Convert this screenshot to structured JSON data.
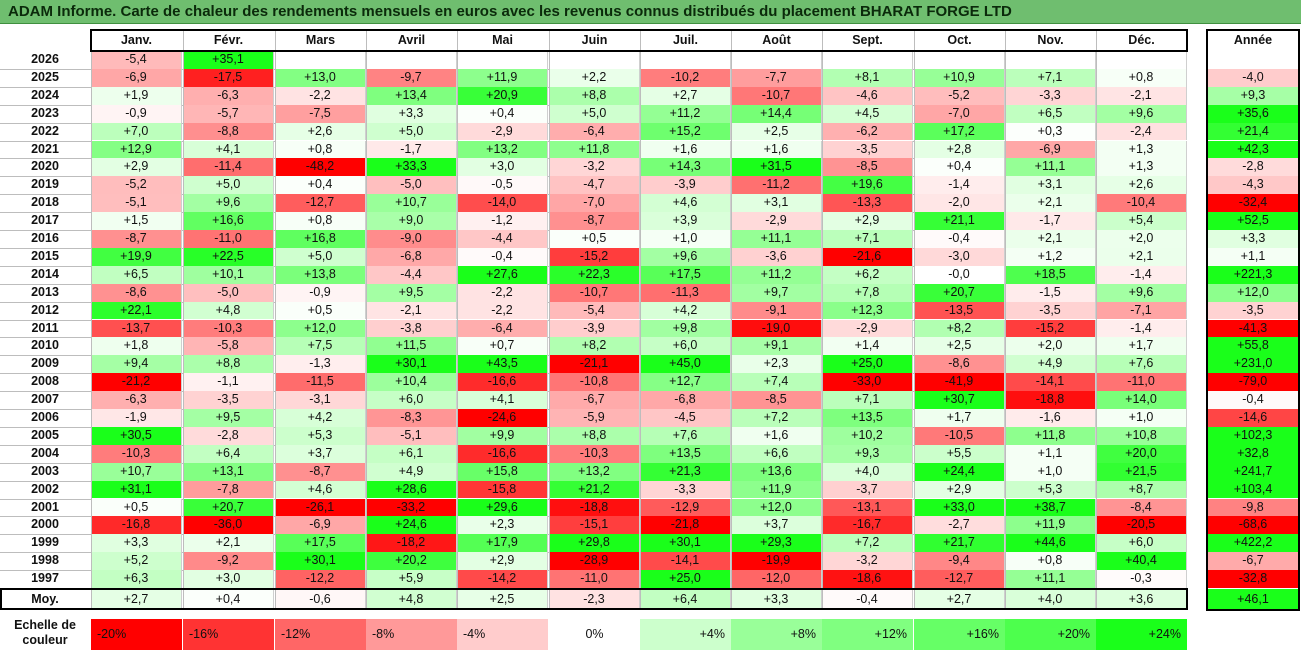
{
  "title": "ADAM Informe. Carte de chaleur des rendements mensuels en euros avec les revenus connus distribués du placement BHARAT FORGE LTD",
  "chart_data": {
    "type": "heatmap",
    "months": [
      "Janv.",
      "Févr.",
      "Mars",
      "Avril",
      "Mai",
      "Juin",
      "Juil.",
      "Août",
      "Sept.",
      "Oct.",
      "Nov.",
      "Déc."
    ],
    "year_header": "Année",
    "rows": [
      {
        "year": "2026",
        "values": [
          "-5,4",
          "+35,1",
          "",
          "",
          "",
          "",
          "",
          "",
          "",
          "",
          "",
          ""
        ],
        "annual": ""
      },
      {
        "year": "2025",
        "values": [
          "-6,9",
          "-17,5",
          "+13,0",
          "-9,7",
          "+11,9",
          "+2,2",
          "-10,2",
          "-7,7",
          "+8,1",
          "+10,9",
          "+7,1",
          "+0,8"
        ],
        "annual": "-4,0"
      },
      {
        "year": "2024",
        "values": [
          "+1,9",
          "-6,3",
          "-2,2",
          "+13,4",
          "+20,9",
          "+8,8",
          "+2,7",
          "-10,7",
          "-4,6",
          "-5,2",
          "-3,3",
          "-2,1"
        ],
        "annual": "+9,3"
      },
      {
        "year": "2023",
        "values": [
          "-0,9",
          "-5,7",
          "-7,5",
          "+3,3",
          "+0,4",
          "+5,0",
          "+11,2",
          "+14,4",
          "+4,5",
          "-7,0",
          "+6,5",
          "+9,6"
        ],
        "annual": "+35,6"
      },
      {
        "year": "2022",
        "values": [
          "+7,0",
          "-8,8",
          "+2,6",
          "+5,0",
          "-2,9",
          "-6,4",
          "+15,2",
          "+2,5",
          "-6,2",
          "+17,2",
          "+0,3",
          "-2,4"
        ],
        "annual": "+21,4"
      },
      {
        "year": "2021",
        "values": [
          "+12,9",
          "+4,1",
          "+0,8",
          "-1,7",
          "+13,2",
          "+11,8",
          "+1,6",
          "+1,6",
          "-3,5",
          "+2,8",
          "-6,9",
          "+1,3"
        ],
        "annual": "+42,3"
      },
      {
        "year": "2020",
        "values": [
          "+2,9",
          "-11,4",
          "-48,2",
          "+33,3",
          "+3,0",
          "-3,2",
          "+14,3",
          "+31,5",
          "-8,5",
          "+0,4",
          "+11,1",
          "+1,3"
        ],
        "annual": "-2,8"
      },
      {
        "year": "2019",
        "values": [
          "-5,2",
          "+5,0",
          "+0,4",
          "-5,0",
          "-0,5",
          "-4,7",
          "-3,9",
          "-11,2",
          "+19,6",
          "-1,4",
          "+3,1",
          "+2,6"
        ],
        "annual": "-4,3"
      },
      {
        "year": "2018",
        "values": [
          "-5,1",
          "+9,6",
          "-12,7",
          "+10,7",
          "-14,0",
          "-7,0",
          "+4,6",
          "+3,1",
          "-13,3",
          "-2,0",
          "+2,1",
          "-10,4"
        ],
        "annual": "-32,4"
      },
      {
        "year": "2017",
        "values": [
          "+1,5",
          "+16,6",
          "+0,8",
          "+9,0",
          "-1,2",
          "-8,7",
          "+3,9",
          "-2,9",
          "+2,9",
          "+21,1",
          "-1,7",
          "+5,4"
        ],
        "annual": "+52,5"
      },
      {
        "year": "2016",
        "values": [
          "-8,7",
          "-11,0",
          "+16,8",
          "-9,0",
          "-4,4",
          "+0,5",
          "+1,0",
          "+11,1",
          "+7,1",
          "-0,4",
          "+2,1",
          "+2,0"
        ],
        "annual": "+3,3"
      },
      {
        "year": "2015",
        "values": [
          "+19,9",
          "+22,5",
          "+5,0",
          "-6,8",
          "-0,4",
          "-15,2",
          "+9,6",
          "-3,6",
          "-21,6",
          "-3,0",
          "+1,2",
          "+2,1"
        ],
        "annual": "+1,1"
      },
      {
        "year": "2014",
        "values": [
          "+6,5",
          "+10,1",
          "+13,8",
          "-4,4",
          "+27,6",
          "+22,3",
          "+17,5",
          "+11,2",
          "+6,2",
          "-0,0",
          "+18,5",
          "-1,4"
        ],
        "annual": "+221,3"
      },
      {
        "year": "2013",
        "values": [
          "-8,6",
          "-5,0",
          "-0,9",
          "+9,5",
          "-2,2",
          "-10,7",
          "-11,3",
          "+9,7",
          "+7,8",
          "+20,7",
          "-1,5",
          "+9,6"
        ],
        "annual": "+12,0"
      },
      {
        "year": "2012",
        "values": [
          "+22,1",
          "+4,8",
          "+0,5",
          "-2,1",
          "-2,2",
          "-5,4",
          "+4,2",
          "-9,1",
          "+12,3",
          "-13,5",
          "-3,5",
          "-7,1"
        ],
        "annual": "-3,5"
      },
      {
        "year": "2011",
        "values": [
          "-13,7",
          "-10,3",
          "+12,0",
          "-3,8",
          "-6,4",
          "-3,9",
          "+9,8",
          "-19,0",
          "-2,9",
          "+8,2",
          "-15,2",
          "-1,4"
        ],
        "annual": "-41,3"
      },
      {
        "year": "2010",
        "values": [
          "+1,8",
          "-5,8",
          "+7,5",
          "+11,5",
          "+0,7",
          "+8,2",
          "+6,0",
          "+9,1",
          "+1,4",
          "+2,5",
          "+2,0",
          "+1,7"
        ],
        "annual": "+55,8"
      },
      {
        "year": "2009",
        "values": [
          "+9,4",
          "+8,8",
          "-1,3",
          "+30,1",
          "+43,5",
          "-21,1",
          "+45,0",
          "+2,3",
          "+25,0",
          "-8,6",
          "+4,9",
          "+7,6"
        ],
        "annual": "+231,0"
      },
      {
        "year": "2008",
        "values": [
          "-21,2",
          "-1,1",
          "-11,5",
          "+10,4",
          "-16,6",
          "-10,8",
          "+12,7",
          "+7,4",
          "-33,0",
          "-41,9",
          "-14,1",
          "-11,0"
        ],
        "annual": "-79,0"
      },
      {
        "year": "2007",
        "values": [
          "-6,3",
          "-3,5",
          "-3,1",
          "+6,0",
          "+4,1",
          "-6,7",
          "-6,8",
          "-8,5",
          "+7,1",
          "+30,7",
          "-18,8",
          "+14,0"
        ],
        "annual": "-0,4"
      },
      {
        "year": "2006",
        "values": [
          "-1,9",
          "+9,5",
          "+4,2",
          "-8,3",
          "-24,6",
          "-5,9",
          "-4,5",
          "+7,2",
          "+13,5",
          "+1,7",
          "-1,6",
          "+1,0"
        ],
        "annual": "-14,6"
      },
      {
        "year": "2005",
        "values": [
          "+30,5",
          "-2,8",
          "+5,3",
          "-5,1",
          "+9,9",
          "+8,8",
          "+7,6",
          "+1,6",
          "+10,2",
          "-10,5",
          "+11,8",
          "+10,8"
        ],
        "annual": "+102,3"
      },
      {
        "year": "2004",
        "values": [
          "-10,3",
          "+6,4",
          "+3,7",
          "+6,1",
          "-16,6",
          "-10,3",
          "+13,5",
          "+6,6",
          "+9,3",
          "+5,5",
          "+1,1",
          "+20,0"
        ],
        "annual": "+32,8"
      },
      {
        "year": "2003",
        "values": [
          "+10,7",
          "+13,1",
          "-8,7",
          "+4,9",
          "+15,8",
          "+13,2",
          "+21,3",
          "+13,6",
          "+4,0",
          "+24,4",
          "+1,0",
          "+21,5"
        ],
        "annual": "+241,7"
      },
      {
        "year": "2002",
        "values": [
          "+31,1",
          "-7,8",
          "+4,6",
          "+28,6",
          "-15,8",
          "+21,2",
          "-3,3",
          "+11,9",
          "-3,7",
          "+2,9",
          "+5,3",
          "+8,7"
        ],
        "annual": "+103,4"
      },
      {
        "year": "2001",
        "values": [
          "+0,5",
          "+20,7",
          "-26,1",
          "-33,2",
          "+29,6",
          "-18,8",
          "-12,9",
          "+12,0",
          "-13,1",
          "+33,0",
          "+38,7",
          "-8,4"
        ],
        "annual": "-9,8"
      },
      {
        "year": "2000",
        "values": [
          "-16,8",
          "-36,0",
          "-6,9",
          "+24,6",
          "+2,3",
          "-15,1",
          "-21,8",
          "+3,7",
          "-16,7",
          "-2,7",
          "+11,9",
          "-20,5"
        ],
        "annual": "-68,6"
      },
      {
        "year": "1999",
        "values": [
          "+3,3",
          "+2,1",
          "+17,5",
          "-18,2",
          "+17,9",
          "+29,8",
          "+30,1",
          "+29,3",
          "+7,2",
          "+21,7",
          "+44,6",
          "+6,0"
        ],
        "annual": "+422,2"
      },
      {
        "year": "1998",
        "values": [
          "+5,2",
          "-9,2",
          "+30,1",
          "+20,2",
          "+2,9",
          "-28,9",
          "-14,1",
          "-19,9",
          "-3,2",
          "-9,4",
          "+0,8",
          "+40,4"
        ],
        "annual": "-6,7"
      },
      {
        "year": "1997",
        "values": [
          "+6,3",
          "+3,0",
          "-12,2",
          "+5,9",
          "-14,2",
          "-11,0",
          "+25,0",
          "-12,0",
          "-18,6",
          "-12,7",
          "+11,1",
          "-0,3"
        ],
        "annual": "-32,8"
      }
    ],
    "average": {
      "label": "Moy.",
      "values": [
        "+2,7",
        "+0,4",
        "-0,6",
        "+4,8",
        "+2,5",
        "-2,3",
        "+6,4",
        "+3,3",
        "-0,4",
        "+2,7",
        "+4,0",
        "+3,6"
      ],
      "annual": "+46,1"
    },
    "scale": {
      "label": "Echelle de couleur",
      "steps": [
        {
          "text": "-20%",
          "value": -20,
          "color": "#ff0000"
        },
        {
          "text": "-16%",
          "value": -16,
          "color": "#ff3333"
        },
        {
          "text": "-12%",
          "value": -12,
          "color": "#ff6666"
        },
        {
          "text": "-8%",
          "value": -8,
          "color": "#ff9999"
        },
        {
          "text": "-4%",
          "value": -4,
          "color": "#ffcccc"
        },
        {
          "text": "0%",
          "value": 0,
          "color": "#ffffff"
        },
        {
          "text": "+4%",
          "value": 4,
          "color": "#ccffcc"
        },
        {
          "text": "+8%",
          "value": 8,
          "color": "#99ff99"
        },
        {
          "text": "+12%",
          "value": 12,
          "color": "#80ff80"
        },
        {
          "text": "+16%",
          "value": 16,
          "color": "#66ff66"
        },
        {
          "text": "+20%",
          "value": 20,
          "color": "#4dff4d"
        },
        {
          "text": "+24%",
          "value": 24,
          "color": "#1aff1a"
        }
      ]
    }
  }
}
